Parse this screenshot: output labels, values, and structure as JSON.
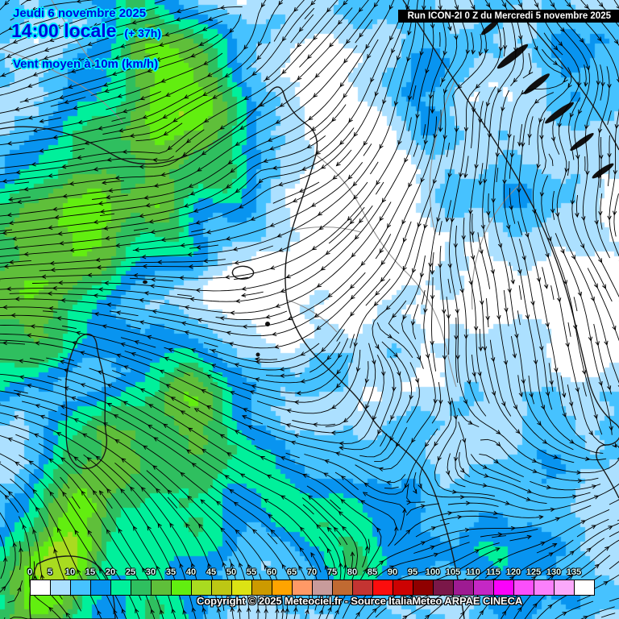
{
  "header": {
    "date_line": "Jeudi 6 novembre 2025",
    "time_line": "14:00 locale",
    "offset": "(+ 37h)",
    "variable_line": "Vent moyen à 10m (km/h)"
  },
  "run_info": "Run ICON-2I 0 Z du Mercredi 5 novembre 2025",
  "copyright": "Copyright © 2025 Meteociel.fr - Source ItaliaMeteo ARPAE CINECA",
  "legend": {
    "unit": "km/h",
    "tick_labels": [
      "0",
      "5",
      "10",
      "15",
      "20",
      "25",
      "30",
      "35",
      "40",
      "45",
      "50",
      "55",
      "60",
      "65",
      "70",
      "75",
      "80",
      "85",
      "90",
      "95",
      "100",
      "105",
      "110",
      "115",
      "120",
      "125",
      "130",
      "135"
    ],
    "block_colors": [
      "#ffffff",
      "#ace0ff",
      "#46c2ff",
      "#0894f0",
      "#00f09b",
      "#2fbf5f",
      "#5fbf3a",
      "#62ee10",
      "#a9db20",
      "#bdc714",
      "#dce314",
      "#cc9a00",
      "#ffa400",
      "#ff9966",
      "#c89b9b",
      "#c06a32",
      "#c33432",
      "#fc0d0d",
      "#cc0202",
      "#8f0000",
      "#7a1748",
      "#9e1b92",
      "#c527c5",
      "#fb02fb",
      "#fb4ffb",
      "#fb80fb",
      "#fba9fb",
      "#ffffff"
    ]
  },
  "map": {
    "type": "wind-streamline-map",
    "fill_palette": {
      "0": "#ffffff",
      "5": "#ace0ff",
      "10": "#46c2ff",
      "15": "#0894f0",
      "20": "#00f09b",
      "25": "#2fbf5f",
      "30": "#5fbf3a",
      "35": "#62ee10",
      "40": "#a9db20"
    },
    "streamline_color": "#000000",
    "coast_color": "#1a1a1a",
    "border_color": "#8f8f8f"
  }
}
